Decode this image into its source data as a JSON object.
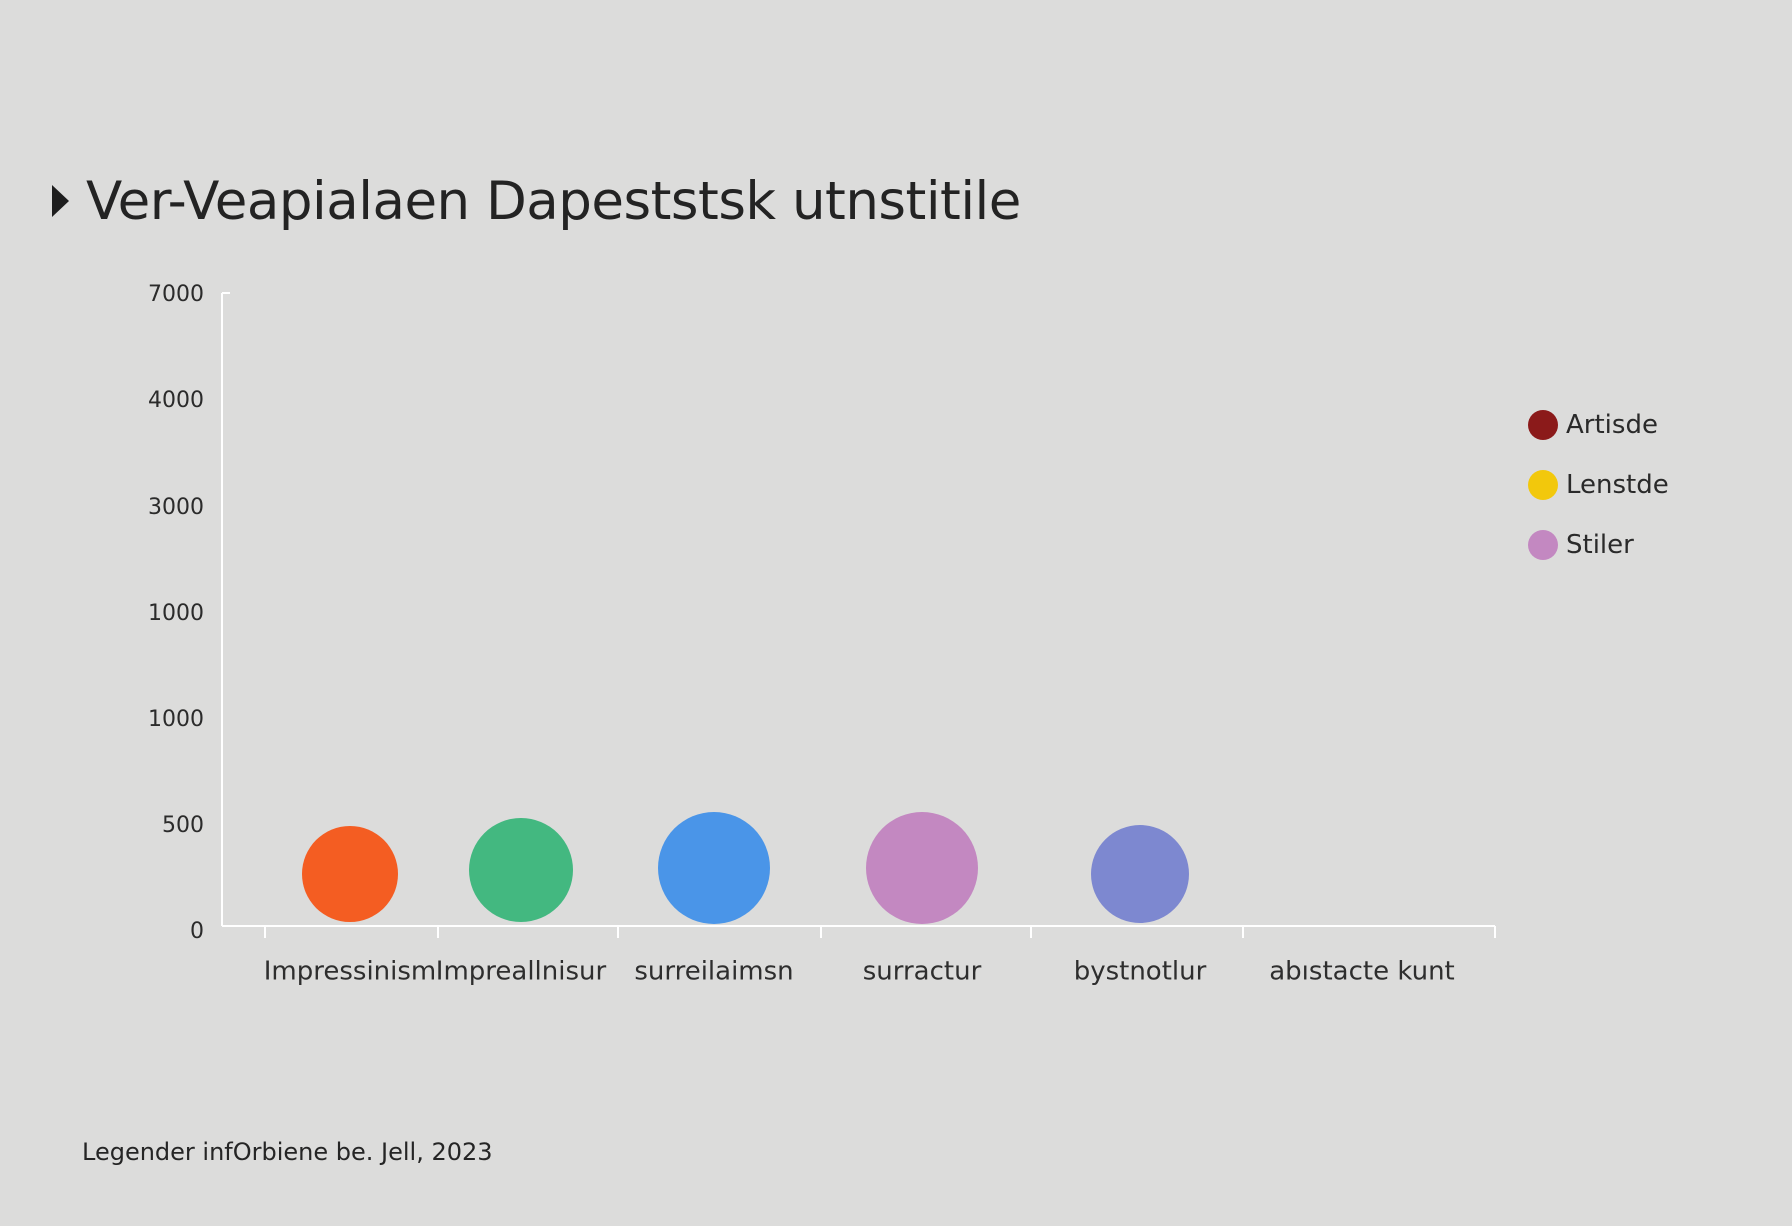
{
  "chart_data": {
    "type": "scatter",
    "title": "Ver-Veapialaen Dapeststsk utnstitile",
    "xlabel": "",
    "ylabel": "",
    "y_tick_labels": [
      "0",
      "500",
      "1000",
      "1000",
      "3000",
      "4000",
      "7000"
    ],
    "categories": [
      "Impressinism",
      "Impreallnisur",
      "surreilaimsn",
      "surractur",
      "bystnotlur",
      "abıstacte kunt"
    ],
    "points": [
      {
        "category": "Impressinism",
        "y": 260,
        "color": "#f45d22"
      },
      {
        "category": "Impreallnisur",
        "y": 280,
        "color": "#43b880"
      },
      {
        "category": "surreilaimsn",
        "y": 290,
        "color": "#4a95e8"
      },
      {
        "category": "surractur",
        "y": 290,
        "color": "#c388c1"
      },
      {
        "category": "bystnotlur",
        "y": 260,
        "color": "#7d88d0"
      }
    ],
    "legend": {
      "position": "right",
      "entries": [
        {
          "label": "Artisde",
          "color": "#8b1a1a"
        },
        {
          "label": "Lenstde",
          "color": "#f2c80c"
        },
        {
          "label": "Stiler",
          "color": "#c388c1"
        }
      ]
    },
    "grid": false,
    "footnote": "Legender infOrbiene be. Jell, 2023"
  }
}
